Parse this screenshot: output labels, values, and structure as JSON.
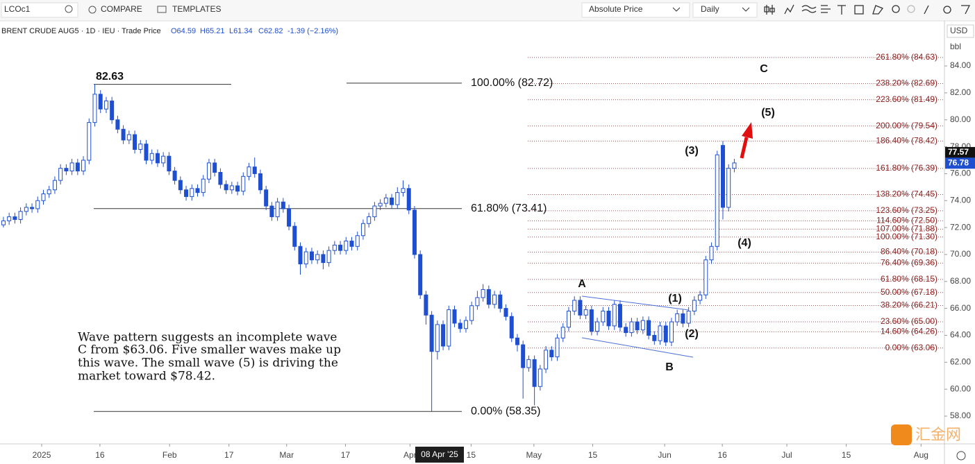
{
  "toolbar": {
    "symbol": "LCOc1",
    "compare": "COMPARE",
    "templates": "TEMPLATES",
    "price_mode": "Absolute Price",
    "interval": "Daily"
  },
  "legend": {
    "name": "BRENT CRUDE AUG5 · 1D · IEU · Trade Price",
    "open": "O64.59",
    "high": "H65.21",
    "low": "L61.34",
    "close": "C62.82",
    "change": "-1.39 (−2.16%)"
  },
  "axis_units": {
    "currency": "USD",
    "unit": "bbl"
  },
  "chart_data": {
    "type": "candlestick",
    "up_color": "#ffffff",
    "down_color": "#1f4fd1",
    "edge_color": "#1f4fd1",
    "ylim": [
      55.94,
      87.35
    ],
    "xlim": [
      -0.6,
      164.8
    ],
    "yticks": [
      {
        "value": 58,
        "label": "58.00"
      },
      {
        "value": 60,
        "label": "60.00"
      },
      {
        "value": 62,
        "label": "62.00"
      },
      {
        "value": 64,
        "label": "64.00"
      },
      {
        "value": 66,
        "label": "66.00"
      },
      {
        "value": 68,
        "label": "68.00"
      },
      {
        "value": 70,
        "label": "70.00"
      },
      {
        "value": 72,
        "label": "72.00"
      },
      {
        "value": 74,
        "label": "74.00"
      },
      {
        "value": 76,
        "label": "76.00"
      },
      {
        "value": 78,
        "label": "78.00"
      },
      {
        "value": 80,
        "label": "80.00"
      },
      {
        "value": 82,
        "label": "82.00"
      },
      {
        "value": 84,
        "label": "84.00"
      }
    ],
    "xticks": [
      {
        "value": 6.7,
        "label": "2025"
      },
      {
        "value": 16.9,
        "label": "16"
      },
      {
        "value": 29.1,
        "label": "Feb"
      },
      {
        "value": 39.5,
        "label": "17"
      },
      {
        "value": 49.6,
        "label": "Mar"
      },
      {
        "value": 59.9,
        "label": "17"
      },
      {
        "value": 71.2,
        "label": "Apr"
      },
      {
        "value": 81.9,
        "label": "15"
      },
      {
        "value": 92.9,
        "label": "May"
      },
      {
        "value": 103.2,
        "label": "15"
      },
      {
        "value": 115.8,
        "label": "Jun"
      },
      {
        "value": 125.9,
        "label": "16"
      },
      {
        "value": 137.2,
        "label": "Jul"
      },
      {
        "value": 147.6,
        "label": "15"
      },
      {
        "value": 160.7,
        "label": "Aug"
      }
    ],
    "ohlc": [
      [
        72.2,
        72.8,
        72.0,
        72.5
      ],
      [
        72.5,
        73.1,
        72.2,
        72.8
      ],
      [
        72.8,
        73.1,
        72.3,
        72.6
      ],
      [
        72.6,
        73.5,
        72.3,
        73.2
      ],
      [
        73.2,
        73.8,
        72.9,
        73.5
      ],
      [
        73.5,
        73.8,
        73.1,
        73.4
      ],
      [
        73.4,
        74.3,
        73.1,
        74.0
      ],
      [
        74.0,
        74.8,
        73.7,
        74.5
      ],
      [
        74.5,
        75.1,
        74.2,
        74.8
      ],
      [
        74.8,
        75.8,
        74.5,
        75.5
      ],
      [
        75.5,
        76.7,
        75.2,
        76.4
      ],
      [
        76.4,
        76.7,
        75.9,
        76.2
      ],
      [
        76.2,
        77.1,
        75.9,
        76.8
      ],
      [
        76.8,
        77.1,
        75.9,
        76.2
      ],
      [
        76.2,
        77.3,
        75.9,
        77.0
      ],
      [
        77.0,
        80.1,
        76.7,
        79.8
      ],
      [
        79.8,
        82.63,
        79.5,
        81.9
      ],
      [
        81.9,
        82.2,
        80.5,
        80.8
      ],
      [
        80.8,
        81.7,
        80.5,
        81.4
      ],
      [
        81.4,
        81.7,
        79.7,
        80.0
      ],
      [
        80.0,
        80.3,
        79.0,
        79.3
      ],
      [
        79.3,
        79.6,
        78.2,
        78.5
      ],
      [
        78.5,
        79.2,
        78.2,
        78.9
      ],
      [
        78.9,
        79.2,
        77.5,
        77.8
      ],
      [
        77.8,
        78.5,
        77.5,
        78.2
      ],
      [
        78.2,
        78.5,
        76.7,
        77.0
      ],
      [
        77.0,
        77.8,
        76.7,
        77.5
      ],
      [
        77.5,
        77.8,
        76.5,
        76.8
      ],
      [
        76.8,
        77.6,
        76.5,
        77.3
      ],
      [
        77.3,
        77.6,
        75.9,
        76.2
      ],
      [
        76.2,
        76.5,
        75.2,
        75.5
      ],
      [
        75.5,
        75.8,
        74.5,
        74.8
      ],
      [
        74.8,
        75.1,
        74.0,
        74.3
      ],
      [
        74.3,
        75.2,
        74.0,
        74.9
      ],
      [
        74.9,
        75.2,
        74.3,
        74.6
      ],
      [
        74.6,
        75.9,
        74.3,
        75.6
      ],
      [
        75.6,
        77.1,
        75.3,
        76.8
      ],
      [
        76.8,
        77.1,
        75.8,
        76.1
      ],
      [
        76.1,
        76.4,
        74.9,
        75.2
      ],
      [
        75.2,
        75.5,
        74.5,
        74.8
      ],
      [
        74.8,
        75.4,
        74.5,
        75.1
      ],
      [
        75.1,
        75.4,
        74.4,
        74.7
      ],
      [
        74.7,
        76.1,
        74.4,
        75.8
      ],
      [
        75.8,
        76.8,
        75.5,
        76.5
      ],
      [
        76.5,
        77.2,
        75.7,
        76.0
      ],
      [
        76.0,
        76.3,
        74.5,
        74.8
      ],
      [
        74.8,
        75.1,
        73.3,
        73.6
      ],
      [
        73.6,
        73.9,
        72.5,
        72.8
      ],
      [
        72.8,
        74.2,
        72.5,
        73.9
      ],
      [
        73.9,
        74.2,
        73.1,
        73.4
      ],
      [
        73.4,
        73.7,
        71.8,
        72.1
      ],
      [
        72.1,
        72.4,
        70.3,
        70.6
      ],
      [
        70.6,
        70.9,
        68.5,
        69.3
      ],
      [
        69.3,
        70.5,
        69.0,
        70.2
      ],
      [
        70.2,
        70.5,
        69.3,
        69.6
      ],
      [
        69.6,
        70.3,
        69.3,
        70.0
      ],
      [
        70.0,
        70.3,
        68.9,
        69.4
      ],
      [
        69.4,
        70.6,
        69.1,
        70.3
      ],
      [
        70.3,
        71.0,
        70.0,
        70.7
      ],
      [
        70.7,
        71.0,
        70.0,
        70.3
      ],
      [
        70.3,
        71.3,
        70.0,
        71.0
      ],
      [
        71.0,
        71.3,
        70.3,
        70.6
      ],
      [
        70.6,
        71.7,
        70.3,
        71.4
      ],
      [
        71.4,
        72.6,
        71.1,
        72.3
      ],
      [
        72.3,
        73.1,
        72.0,
        72.8
      ],
      [
        72.8,
        73.9,
        72.5,
        73.6
      ],
      [
        73.6,
        74.1,
        73.3,
        73.8
      ],
      [
        73.8,
        74.5,
        73.5,
        74.2
      ],
      [
        74.2,
        74.5,
        73.4,
        73.7
      ],
      [
        73.7,
        75.0,
        73.4,
        74.6
      ],
      [
        74.6,
        75.5,
        74.3,
        74.9
      ],
      [
        74.9,
        75.2,
        73.0,
        73.3
      ],
      [
        73.3,
        73.6,
        69.7,
        70.0
      ],
      [
        70.0,
        70.3,
        66.7,
        67.0
      ],
      [
        67.0,
        67.3,
        64.8,
        65.5
      ],
      [
        65.5,
        65.8,
        58.35,
        62.8
      ],
      [
        62.8,
        65.1,
        62.2,
        64.8
      ],
      [
        64.8,
        65.1,
        62.9,
        63.2
      ],
      [
        63.2,
        66.2,
        62.9,
        65.9
      ],
      [
        65.9,
        66.2,
        64.6,
        64.9
      ],
      [
        64.9,
        65.2,
        64.2,
        64.5
      ],
      [
        64.5,
        65.4,
        64.2,
        65.1
      ],
      [
        65.1,
        66.5,
        64.8,
        66.2
      ],
      [
        66.2,
        67.3,
        65.9,
        66.8
      ],
      [
        66.8,
        67.8,
        66.5,
        67.4
      ],
      [
        67.4,
        67.7,
        66.0,
        66.3
      ],
      [
        66.3,
        67.3,
        66.0,
        67.0
      ],
      [
        67.0,
        67.3,
        65.7,
        66.0
      ],
      [
        66.0,
        66.3,
        65.1,
        65.4
      ],
      [
        65.4,
        65.7,
        63.5,
        63.8
      ],
      [
        63.8,
        64.1,
        62.8,
        63.3
      ],
      [
        63.3,
        63.6,
        59.3,
        61.6
      ],
      [
        61.6,
        62.5,
        61.3,
        62.2
      ],
      [
        62.2,
        62.5,
        58.8,
        60.2
      ],
      [
        60.2,
        61.8,
        59.9,
        61.5
      ],
      [
        61.5,
        63.2,
        61.2,
        62.9
      ],
      [
        62.9,
        63.2,
        62.1,
        62.4
      ],
      [
        62.4,
        64.1,
        62.1,
        63.8
      ],
      [
        63.8,
        64.9,
        63.5,
        64.6
      ],
      [
        64.6,
        66.1,
        64.3,
        65.8
      ],
      [
        65.8,
        66.9,
        65.5,
        66.6
      ],
      [
        66.6,
        66.9,
        65.2,
        65.5
      ],
      [
        65.5,
        66.2,
        65.2,
        65.9
      ],
      [
        65.9,
        66.2,
        64.0,
        64.3
      ],
      [
        64.3,
        65.3,
        64.0,
        65.0
      ],
      [
        65.0,
        66.1,
        64.7,
        65.8
      ],
      [
        65.8,
        66.1,
        64.4,
        64.7
      ],
      [
        64.7,
        66.6,
        64.4,
        66.3
      ],
      [
        66.3,
        66.6,
        64.3,
        64.6
      ],
      [
        64.6,
        64.9,
        63.9,
        64.2
      ],
      [
        64.2,
        65.3,
        63.9,
        65.0
      ],
      [
        65.0,
        65.3,
        64.1,
        64.4
      ],
      [
        64.4,
        65.4,
        64.1,
        65.1
      ],
      [
        65.1,
        65.4,
        63.7,
        64.0
      ],
      [
        64.0,
        64.3,
        63.3,
        63.6
      ],
      [
        63.6,
        65.0,
        63.3,
        64.7
      ],
      [
        64.7,
        65.0,
        63.2,
        63.5
      ],
      [
        63.5,
        65.3,
        63.2,
        65.0
      ],
      [
        65.0,
        65.9,
        64.7,
        65.6
      ],
      [
        65.6,
        65.9,
        64.6,
        64.9
      ],
      [
        64.9,
        66.1,
        64.6,
        65.8
      ],
      [
        65.8,
        66.9,
        65.5,
        66.6
      ],
      [
        66.6,
        67.3,
        66.3,
        67.0
      ],
      [
        67.0,
        69.9,
        66.7,
        69.6
      ],
      [
        69.6,
        70.9,
        69.3,
        70.6
      ],
      [
        70.6,
        77.7,
        70.3,
        77.4
      ],
      [
        78.1,
        78.42,
        72.6,
        73.5
      ],
      [
        73.5,
        76.7,
        73.2,
        76.4
      ],
      [
        76.4,
        77.1,
        76.1,
        76.8
      ]
    ],
    "fib_right": [
      {
        "label": "261.80% (84.63)",
        "value": 84.63
      },
      {
        "label": "238.20% (82.69)",
        "value": 82.69
      },
      {
        "label": "223.60% (81.49)",
        "value": 81.49
      },
      {
        "label": "200.00% (79.54)",
        "value": 79.54
      },
      {
        "label": "186.40% (78.42)",
        "value": 78.42
      },
      {
        "label": "161.80% (76.39)",
        "value": 76.39
      },
      {
        "label": "138.20% (74.45)",
        "value": 74.45
      },
      {
        "label": "123.60% (73.25)",
        "value": 73.25
      },
      {
        "label": "114.60% (72.50)",
        "value": 72.5
      },
      {
        "label": "107.00% (71.88)",
        "value": 71.88
      },
      {
        "label": "100.00% (71.30)",
        "value": 71.3
      },
      {
        "label": "86.40% (70.18)",
        "value": 70.18
      },
      {
        "label": "76.40% (69.36)",
        "value": 69.36
      },
      {
        "label": "61.80% (68.15)",
        "value": 68.15
      },
      {
        "label": "50.00% (67.18)",
        "value": 67.18
      },
      {
        "label": "38.20% (66.21)",
        "value": 66.21
      },
      {
        "label": "23.60% (65.00)",
        "value": 65
      },
      {
        "label": "14.60% (64.26)",
        "value": 64.26
      },
      {
        "label": "0.00% (63.06)",
        "value": 63.06
      }
    ],
    "fib_left": [
      {
        "label": "100.00% (82.72)",
        "value": 82.72
      },
      {
        "label": "61.80% (73.41)",
        "value": 73.41
      },
      {
        "label": "0.00% (58.35)",
        "value": 58.35
      }
    ],
    "peak": {
      "label": "82.63",
      "value": 82.63
    },
    "last_price": {
      "label": "77.57",
      "value": 77.57
    },
    "current_price": {
      "label": "76.78",
      "value": 76.78
    },
    "crosshair_date": "08 Apr '25",
    "waves": [
      "A",
      "B",
      "C",
      "(1)",
      "(2)",
      "(3)",
      "(4)",
      "(5)"
    ],
    "note": [
      "Wave pattern suggests an incomplete wave",
      "C from $63.06. Five smaller waves make up",
      "this wave. The small wave (5) is driving the",
      "market toward $78.42."
    ]
  },
  "watermark": "汇金网"
}
